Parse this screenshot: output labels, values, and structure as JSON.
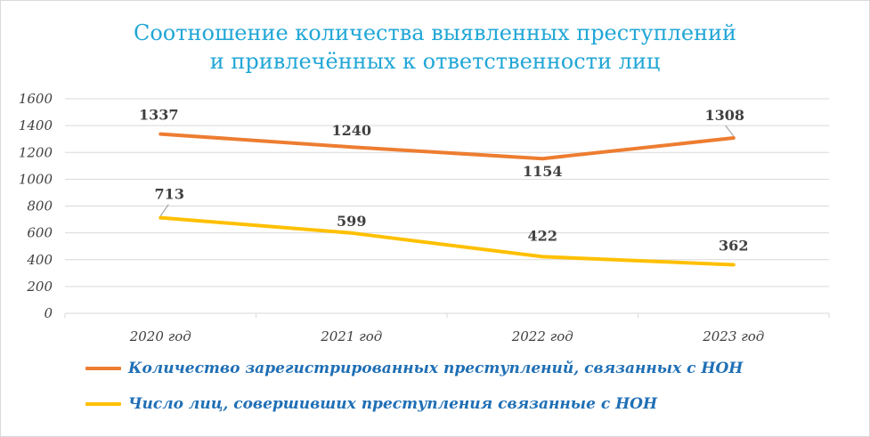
{
  "chart_data": {
    "type": "line",
    "title_lines": [
      "Соотношение количества выявленных преступлений",
      "и привлечённых к ответственности лиц"
    ],
    "categories": [
      "2020 год",
      "2021 год",
      "2022 год",
      "2023 год"
    ],
    "ylim": [
      0,
      1600
    ],
    "yticks": [
      0,
      200,
      400,
      600,
      800,
      1000,
      1200,
      1400,
      1600
    ],
    "grid": true,
    "legend_position": "bottom-left",
    "series": [
      {
        "name": "Количество зарегистрированных преступлений, связанных с НОН",
        "values": [
          1337,
          1240,
          1154,
          1308
        ],
        "color": "#ed7d31"
      },
      {
        "name": "Число лиц, совершивших преступления связанные с НОН",
        "values": [
          713,
          599,
          422,
          362
        ],
        "color": "#ffc000"
      }
    ]
  }
}
